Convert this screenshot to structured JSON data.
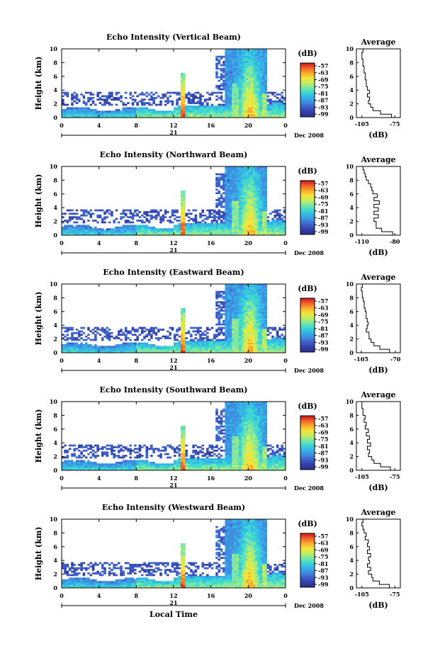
{
  "chart_data": [
    {
      "type": "heatmap",
      "title": "Echo Intensity (Vertical Beam)",
      "ylabel": "Height (km)",
      "xlabel": "",
      "x_ticks": [
        "0",
        "4",
        "8",
        "12",
        "16",
        "20",
        "0"
      ],
      "y_ticks": [
        "0",
        "2",
        "4",
        "6",
        "8",
        "10"
      ],
      "xlim": [
        0,
        24
      ],
      "ylim": [
        0,
        10
      ],
      "date_day": "21",
      "date_label": "Dec 2008",
      "colorbar": {
        "unit": "(dB)",
        "ticks": [
          "-57",
          "-63",
          "-69",
          "-75",
          "-81",
          "-87",
          "-93",
          "-99"
        ]
      },
      "profile": {
        "title": "Average",
        "xlabel": "(dB)",
        "x_ticks": [
          "-105",
          "-75"
        ],
        "xlim": [
          -110,
          -70
        ],
        "y_ticks": [
          "0",
          "2",
          "4",
          "6",
          "8",
          "10"
        ],
        "ylim": [
          0,
          10
        ],
        "points": [
          [
            -75,
            0
          ],
          [
            -78,
            0.5
          ],
          [
            -88,
            1
          ],
          [
            -95,
            1.5
          ],
          [
            -97,
            2
          ],
          [
            -99,
            2.5
          ],
          [
            -98,
            3
          ],
          [
            -100,
            3.5
          ],
          [
            -98,
            4
          ],
          [
            -100,
            4.5
          ],
          [
            -101,
            5
          ],
          [
            -101,
            5.5
          ],
          [
            -102,
            6
          ],
          [
            -102,
            6.5
          ],
          [
            -103,
            7
          ],
          [
            -103,
            7.5
          ],
          [
            -104,
            8
          ],
          [
            -104,
            8.5
          ],
          [
            -105,
            9
          ],
          [
            -105,
            9.5
          ],
          [
            -104,
            10
          ]
        ]
      }
    },
    {
      "type": "heatmap",
      "title": "Echo Intensity (Northward Beam)",
      "ylabel": "Height (km)",
      "xlabel": "",
      "x_ticks": [
        "0",
        "4",
        "8",
        "12",
        "16",
        "20",
        "0"
      ],
      "y_ticks": [
        "0",
        "2",
        "4",
        "6",
        "8",
        "10"
      ],
      "xlim": [
        0,
        24
      ],
      "ylim": [
        0,
        10
      ],
      "date_day": "21",
      "date_label": "Dec 2008",
      "colorbar": {
        "unit": "(dB)",
        "ticks": [
          "-57",
          "-63",
          "-69",
          "-75",
          "-81",
          "-87",
          "-93",
          "-99"
        ]
      },
      "profile": {
        "title": "Average",
        "xlabel": "(dB)",
        "x_ticks": [
          "-110",
          "-80"
        ],
        "xlim": [
          -115,
          -75
        ],
        "y_ticks": [
          "0",
          "2",
          "4",
          "6",
          "8",
          "10"
        ],
        "ylim": [
          0,
          10
        ],
        "points": [
          [
            -78,
            0
          ],
          [
            -82,
            0.5
          ],
          [
            -92,
            1
          ],
          [
            -97,
            1.5
          ],
          [
            -97,
            2
          ],
          [
            -99,
            2.5
          ],
          [
            -95,
            3
          ],
          [
            -99,
            3.5
          ],
          [
            -95,
            4
          ],
          [
            -99,
            4.5
          ],
          [
            -94,
            5
          ],
          [
            -99,
            5.5
          ],
          [
            -96,
            6
          ],
          [
            -100,
            6.5
          ],
          [
            -101,
            7
          ],
          [
            -102,
            7.5
          ],
          [
            -104,
            8
          ],
          [
            -106,
            8.5
          ],
          [
            -107,
            9
          ],
          [
            -108,
            9.5
          ],
          [
            -109,
            10
          ]
        ]
      }
    },
    {
      "type": "heatmap",
      "title": "Echo Intensity (Eastward Beam)",
      "ylabel": "Height (km)",
      "xlabel": "",
      "x_ticks": [
        "0",
        "4",
        "8",
        "12",
        "16",
        "20",
        "0"
      ],
      "y_ticks": [
        "0",
        "2",
        "4",
        "6",
        "8",
        "10"
      ],
      "xlim": [
        0,
        24
      ],
      "ylim": [
        0,
        10
      ],
      "date_day": "21",
      "date_label": "Dec 2008",
      "colorbar": {
        "unit": "(dB)",
        "ticks": [
          "-57",
          "-63",
          "-69",
          "-75",
          "-81",
          "-87",
          "-93",
          "-99"
        ]
      },
      "profile": {
        "title": "Average",
        "xlabel": "(dB)",
        "x_ticks": [
          "-105",
          "-70"
        ],
        "xlim": [
          -110,
          -65
        ],
        "y_ticks": [
          "0",
          "2",
          "4",
          "6",
          "8",
          "10"
        ],
        "ylim": [
          0,
          10
        ],
        "points": [
          [
            -70,
            0
          ],
          [
            -76,
            0.5
          ],
          [
            -86,
            1
          ],
          [
            -92,
            1.5
          ],
          [
            -95,
            2
          ],
          [
            -97,
            2.5
          ],
          [
            -97,
            3
          ],
          [
            -100,
            3.5
          ],
          [
            -99,
            4
          ],
          [
            -98,
            4.5
          ],
          [
            -99,
            5
          ],
          [
            -100,
            5.5
          ],
          [
            -100,
            6
          ],
          [
            -101,
            6.5
          ],
          [
            -102,
            7
          ],
          [
            -102,
            7.5
          ],
          [
            -103,
            8
          ],
          [
            -104,
            8.5
          ],
          [
            -104,
            9
          ],
          [
            -105,
            9.5
          ],
          [
            -104,
            10
          ]
        ]
      }
    },
    {
      "type": "heatmap",
      "title": "Echo Intensity (Southward Beam)",
      "ylabel": "Height (km)",
      "xlabel": "",
      "x_ticks": [
        "0",
        "4",
        "8",
        "12",
        "16",
        "20",
        "0"
      ],
      "y_ticks": [
        "0",
        "2",
        "4",
        "6",
        "8",
        "10"
      ],
      "xlim": [
        0,
        24
      ],
      "ylim": [
        0,
        10
      ],
      "date_day": "21",
      "date_label": "Dec 2008",
      "colorbar": {
        "unit": "(dB)",
        "ticks": [
          "-57",
          "-63",
          "-69",
          "-75",
          "-81",
          "-87",
          "-93",
          "-99"
        ]
      },
      "profile": {
        "title": "Average",
        "xlabel": "(dB)",
        "x_ticks": [
          "-105",
          "-75"
        ],
        "xlim": [
          -110,
          -70
        ],
        "y_ticks": [
          "0",
          "2",
          "4",
          "6",
          "8",
          "10"
        ],
        "ylim": [
          0,
          10
        ],
        "points": [
          [
            -75,
            0
          ],
          [
            -79,
            0.5
          ],
          [
            -88,
            1
          ],
          [
            -94,
            1.5
          ],
          [
            -96,
            2
          ],
          [
            -99,
            2.5
          ],
          [
            -98,
            3
          ],
          [
            -100,
            3.5
          ],
          [
            -97,
            4
          ],
          [
            -100,
            4.5
          ],
          [
            -98,
            5
          ],
          [
            -101,
            5.5
          ],
          [
            -99,
            6
          ],
          [
            -102,
            6.5
          ],
          [
            -101,
            7
          ],
          [
            -103,
            7.5
          ],
          [
            -102,
            8
          ],
          [
            -104,
            8.5
          ],
          [
            -104,
            9
          ],
          [
            -105,
            9.5
          ],
          [
            -105,
            10
          ]
        ]
      }
    },
    {
      "type": "heatmap",
      "title": "Echo Intensity (Westward Beam)",
      "ylabel": "Height (km)",
      "xlabel": "Local Time",
      "x_ticks": [
        "0",
        "4",
        "8",
        "12",
        "16",
        "20",
        "0"
      ],
      "y_ticks": [
        "0",
        "2",
        "4",
        "6",
        "8",
        "10"
      ],
      "xlim": [
        0,
        24
      ],
      "ylim": [
        0,
        10
      ],
      "date_day": "21",
      "date_label": "Dec 2008",
      "colorbar": {
        "unit": "(dB)",
        "ticks": [
          "-57",
          "-63",
          "-69",
          "-75",
          "-81",
          "-87",
          "-93",
          "-99"
        ]
      },
      "profile": {
        "title": "Average",
        "xlabel": "(dB)",
        "x_ticks": [
          "-105",
          "-75"
        ],
        "xlim": [
          -110,
          -70
        ],
        "y_ticks": [
          "0",
          "2",
          "4",
          "6",
          "8",
          "10"
        ],
        "ylim": [
          0,
          10
        ],
        "points": [
          [
            -76,
            0
          ],
          [
            -80,
            0.5
          ],
          [
            -89,
            1
          ],
          [
            -95,
            1.5
          ],
          [
            -96,
            2
          ],
          [
            -99,
            2.5
          ],
          [
            -97,
            3
          ],
          [
            -100,
            3.5
          ],
          [
            -98,
            4
          ],
          [
            -99,
            4.5
          ],
          [
            -97,
            5
          ],
          [
            -100,
            5.5
          ],
          [
            -98,
            6
          ],
          [
            -100,
            6.5
          ],
          [
            -99,
            7
          ],
          [
            -102,
            7.5
          ],
          [
            -101,
            8
          ],
          [
            -103,
            8.5
          ],
          [
            -104,
            9
          ],
          [
            -105,
            9.5
          ],
          [
            -104,
            10
          ]
        ]
      }
    }
  ],
  "colors": {
    "colormap": [
      "#2b2f8c",
      "#3340a6",
      "#3d5fc8",
      "#3f8ee0",
      "#33b5e8",
      "#3fd8d0",
      "#7ee8a0",
      "#c8ee5a",
      "#f5e23a",
      "#f8a82c",
      "#f0602a",
      "#c8141e"
    ]
  }
}
